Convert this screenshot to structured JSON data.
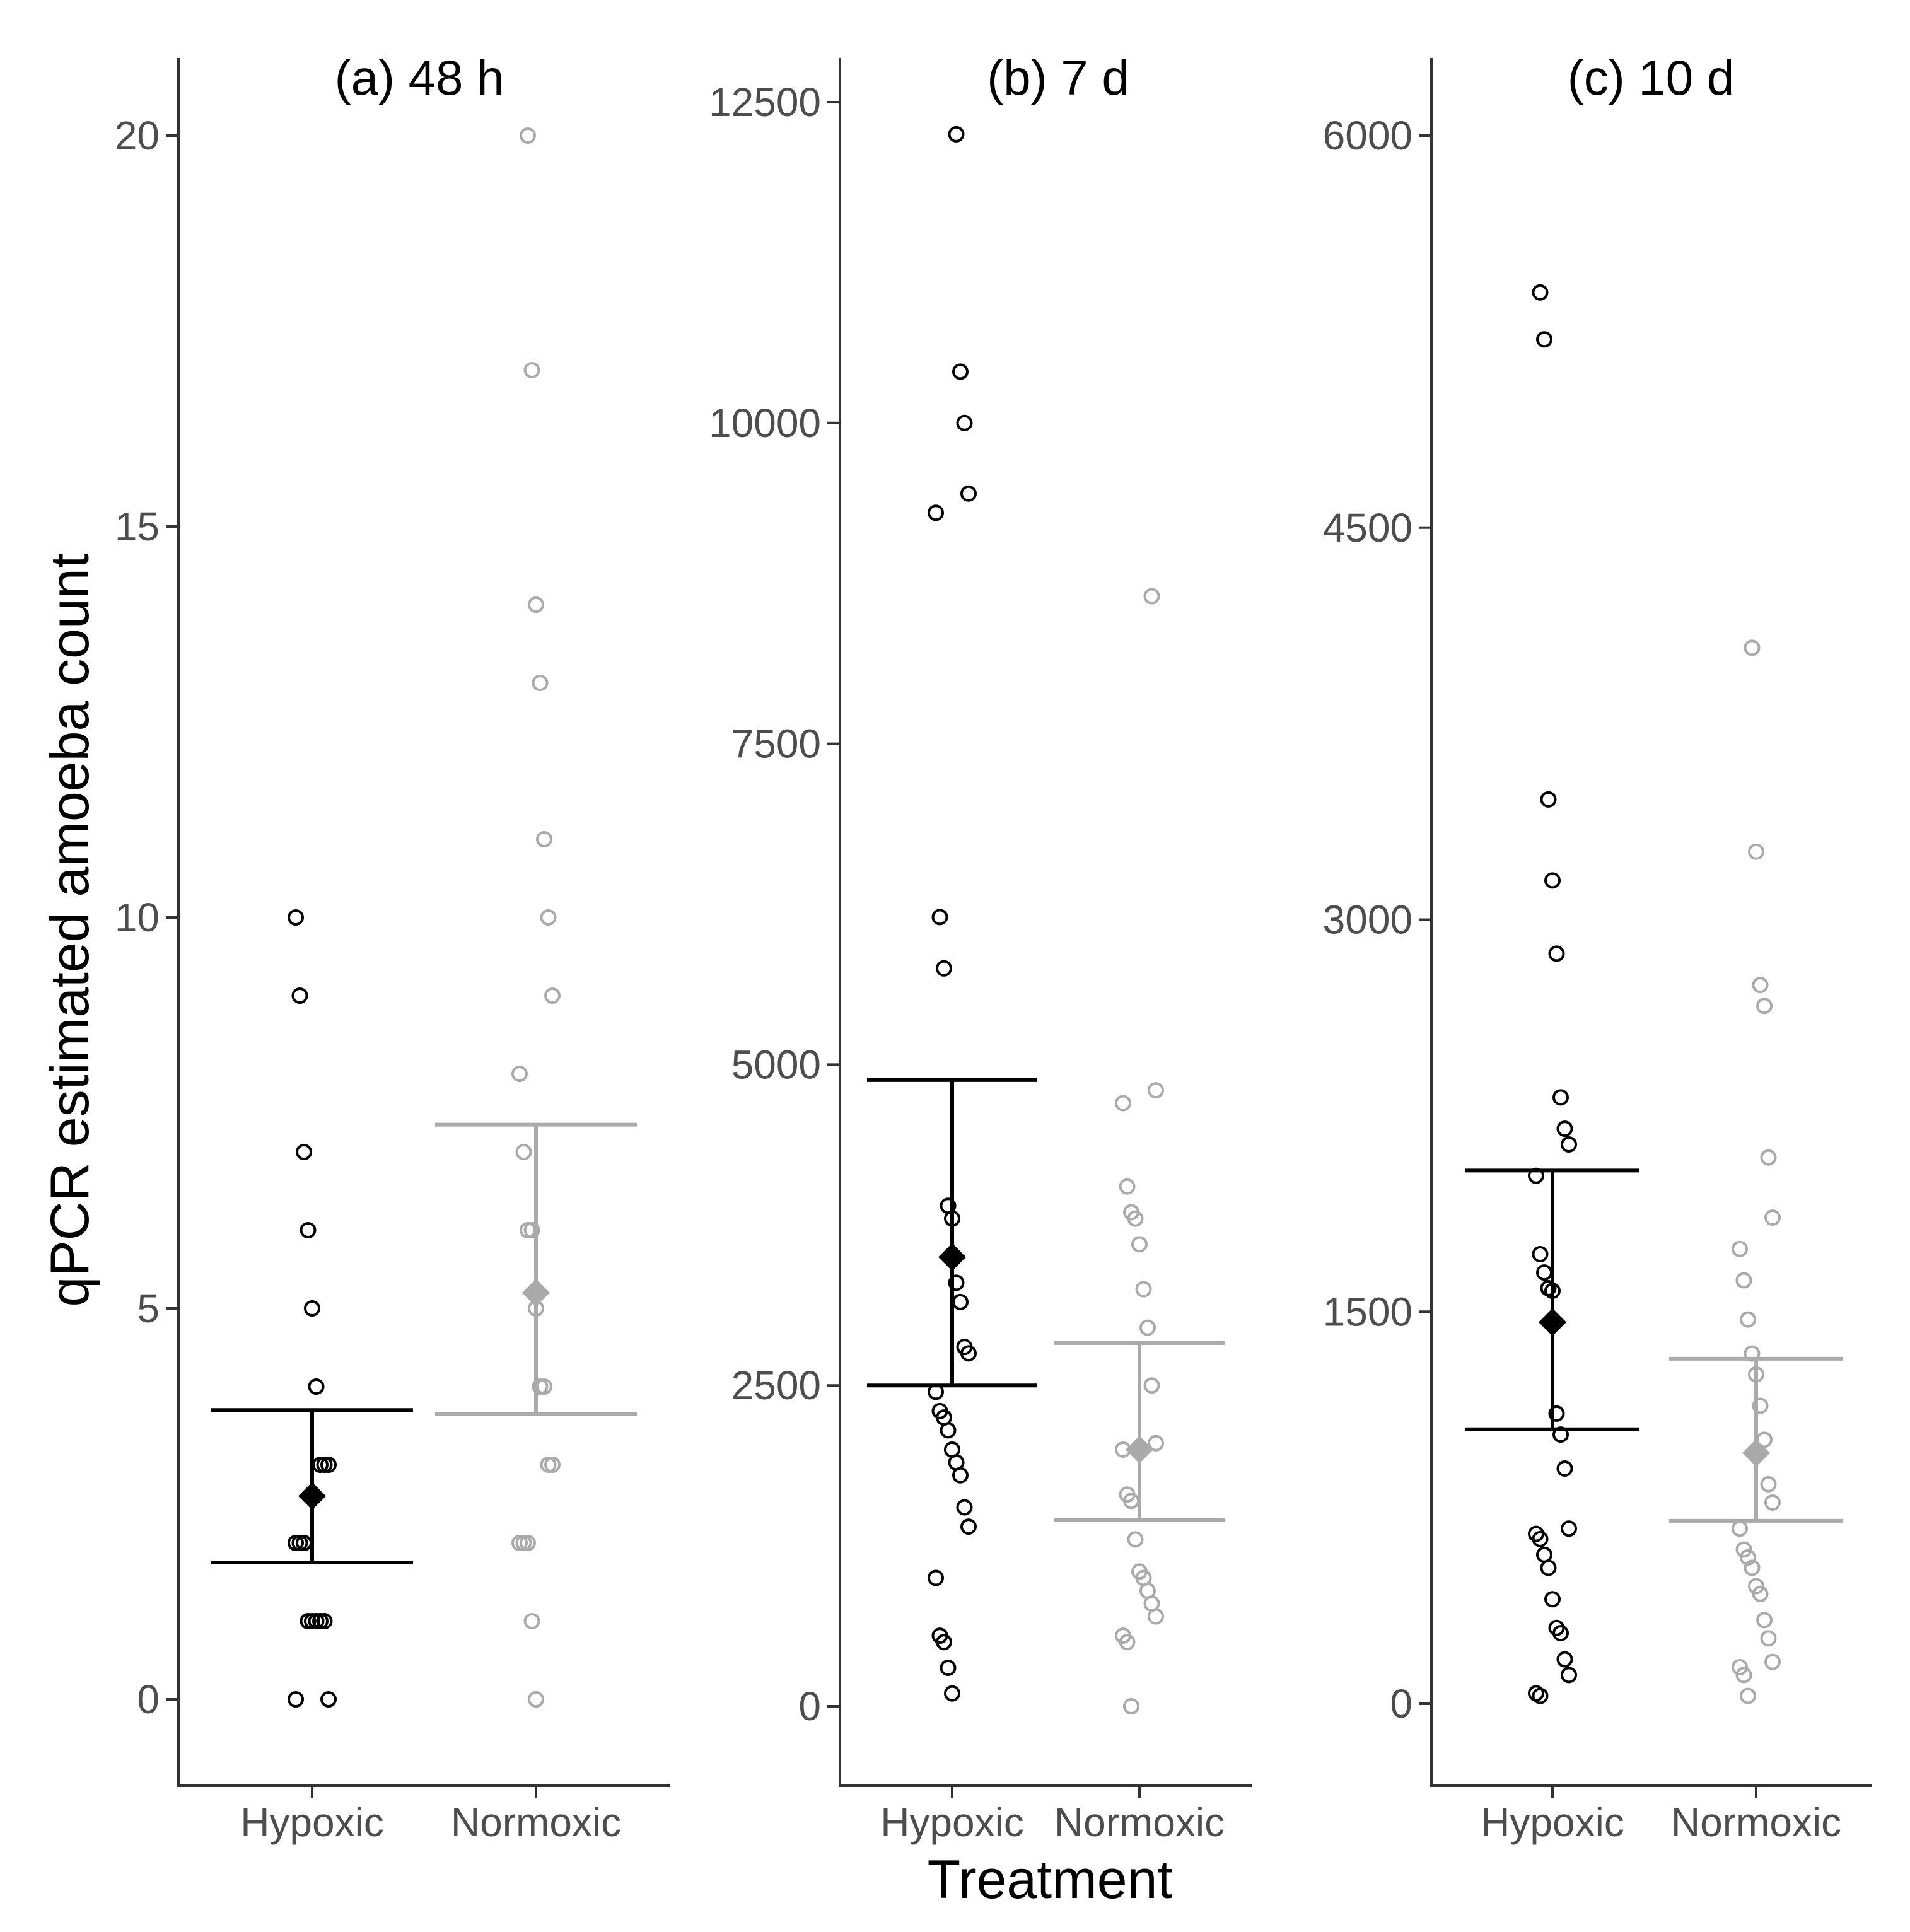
{
  "y_axis_title": "qPCR estimated amoeba count",
  "x_axis_title": "Treatment",
  "colors": {
    "Hypoxic": "#000000",
    "Normoxic": "#aaaaaa"
  },
  "chart_data": [
    {
      "type": "scatter",
      "title": "(a) 48 h",
      "xlabel": "",
      "ylabel": "qPCR estimated amoeba count",
      "categories": [
        "Hypoxic",
        "Normoxic"
      ],
      "yticks": [
        0,
        5,
        10,
        15,
        20
      ],
      "ytick_labels": [
        "0",
        "5",
        "10",
        "15",
        "20"
      ],
      "ylim": [
        -1,
        21
      ],
      "series": [
        {
          "name": "Hypoxic",
          "values": [
            10,
            9,
            7,
            6,
            5,
            4,
            3,
            3,
            3,
            2,
            2,
            2,
            1,
            1,
            1,
            1,
            1,
            0,
            0
          ],
          "mean": 2.6,
          "ci_low": 1.75,
          "ci_high": 3.7
        },
        {
          "name": "Normoxic",
          "values": [
            20,
            17,
            14,
            13,
            11,
            10,
            9,
            8,
            7,
            6,
            6,
            5,
            4,
            4,
            3,
            3,
            2,
            2,
            2,
            1,
            0
          ],
          "mean": 5.2,
          "ci_low": 3.65,
          "ci_high": 7.35
        }
      ]
    },
    {
      "type": "scatter",
      "title": "(b) 7 d",
      "xlabel": "Treatment",
      "ylabel": "",
      "categories": [
        "Hypoxic",
        "Normoxic"
      ],
      "yticks": [
        0,
        2500,
        5000,
        7500,
        10000,
        12500
      ],
      "ytick_labels": [
        "0",
        "2500",
        "5000",
        "7500",
        "10000",
        "12500"
      ],
      "ylim": [
        -600,
        13000
      ],
      "series": [
        {
          "name": "Hypoxic",
          "values": [
            12250,
            10400,
            10000,
            9450,
            9300,
            6150,
            5750,
            3900,
            3800,
            3300,
            3150,
            2800,
            2750,
            2450,
            2300,
            2250,
            2150,
            2000,
            1900,
            1800,
            1550,
            1400,
            1000,
            550,
            500,
            300,
            100
          ],
          "mean": 3500,
          "ci_low": 2500,
          "ci_high": 4880
        },
        {
          "name": "Normoxic",
          "values": [
            8650,
            4800,
            4700,
            4050,
            3850,
            3800,
            3600,
            3250,
            2950,
            2500,
            2050,
            2000,
            1650,
            1600,
            1300,
            1050,
            1000,
            900,
            800,
            700,
            550,
            500,
            0
          ],
          "mean": 2000,
          "ci_low": 1450,
          "ci_high": 2830
        }
      ]
    },
    {
      "type": "scatter",
      "title": "(c) 10 d",
      "xlabel": "",
      "ylabel": "",
      "categories": [
        "Hypoxic",
        "Normoxic"
      ],
      "yticks": [
        0,
        1500,
        3000,
        4500,
        6000
      ],
      "ytick_labels": [
        "0",
        "1500",
        "3000",
        "4500",
        "6000"
      ],
      "ylim": [
        -300,
        6300
      ],
      "series": [
        {
          "name": "Hypoxic",
          "values": [
            5400,
            5220,
            3460,
            3150,
            2870,
            2320,
            2200,
            2140,
            2020,
            1720,
            1650,
            1590,
            1580,
            1110,
            1030,
            900,
            670,
            650,
            630,
            570,
            520,
            400,
            290,
            270,
            170,
            110,
            40,
            30
          ],
          "mean": 1460,
          "ci_low": 1050,
          "ci_high": 2040
        },
        {
          "name": "Normoxic",
          "values": [
            4040,
            3260,
            2750,
            2670,
            2090,
            1860,
            1740,
            1620,
            1470,
            1340,
            1260,
            1140,
            1010,
            840,
            770,
            670,
            590,
            560,
            520,
            450,
            420,
            320,
            250,
            160,
            140,
            110,
            30
          ],
          "mean": 960,
          "ci_low": 700,
          "ci_high": 1320
        }
      ]
    }
  ]
}
